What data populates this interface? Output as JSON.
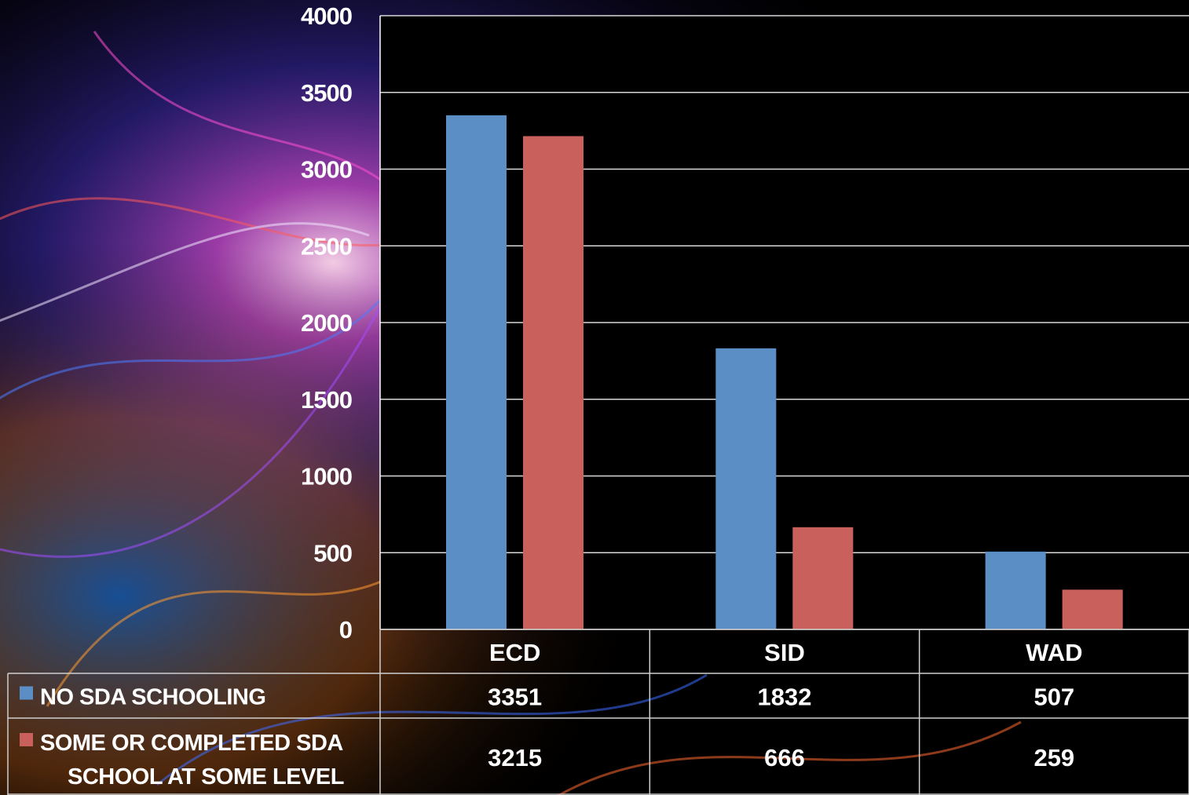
{
  "chart_data": {
    "type": "bar",
    "categories": [
      "ECD",
      "SID",
      "WAD"
    ],
    "series": [
      {
        "name": "NO SDA SCHOOLING",
        "values": [
          3351,
          1832,
          507
        ],
        "color": "#5b8ec4"
      },
      {
        "name": "SOME OR COMPLETED SDA SCHOOL AT SOME LEVEL",
        "name_lines": [
          "SOME OR COMPLETED SDA",
          "SCHOOL AT SOME LEVEL"
        ],
        "values": [
          3215,
          666,
          259
        ],
        "color": "#c9605c"
      }
    ],
    "ylim": [
      0,
      4000
    ],
    "yticks": [
      0,
      500,
      1000,
      1500,
      2000,
      2500,
      3000,
      3500,
      4000
    ],
    "grid": true,
    "data_table": true,
    "plot_background": "#000000",
    "title": "",
    "xlabel": "",
    "ylabel": ""
  }
}
